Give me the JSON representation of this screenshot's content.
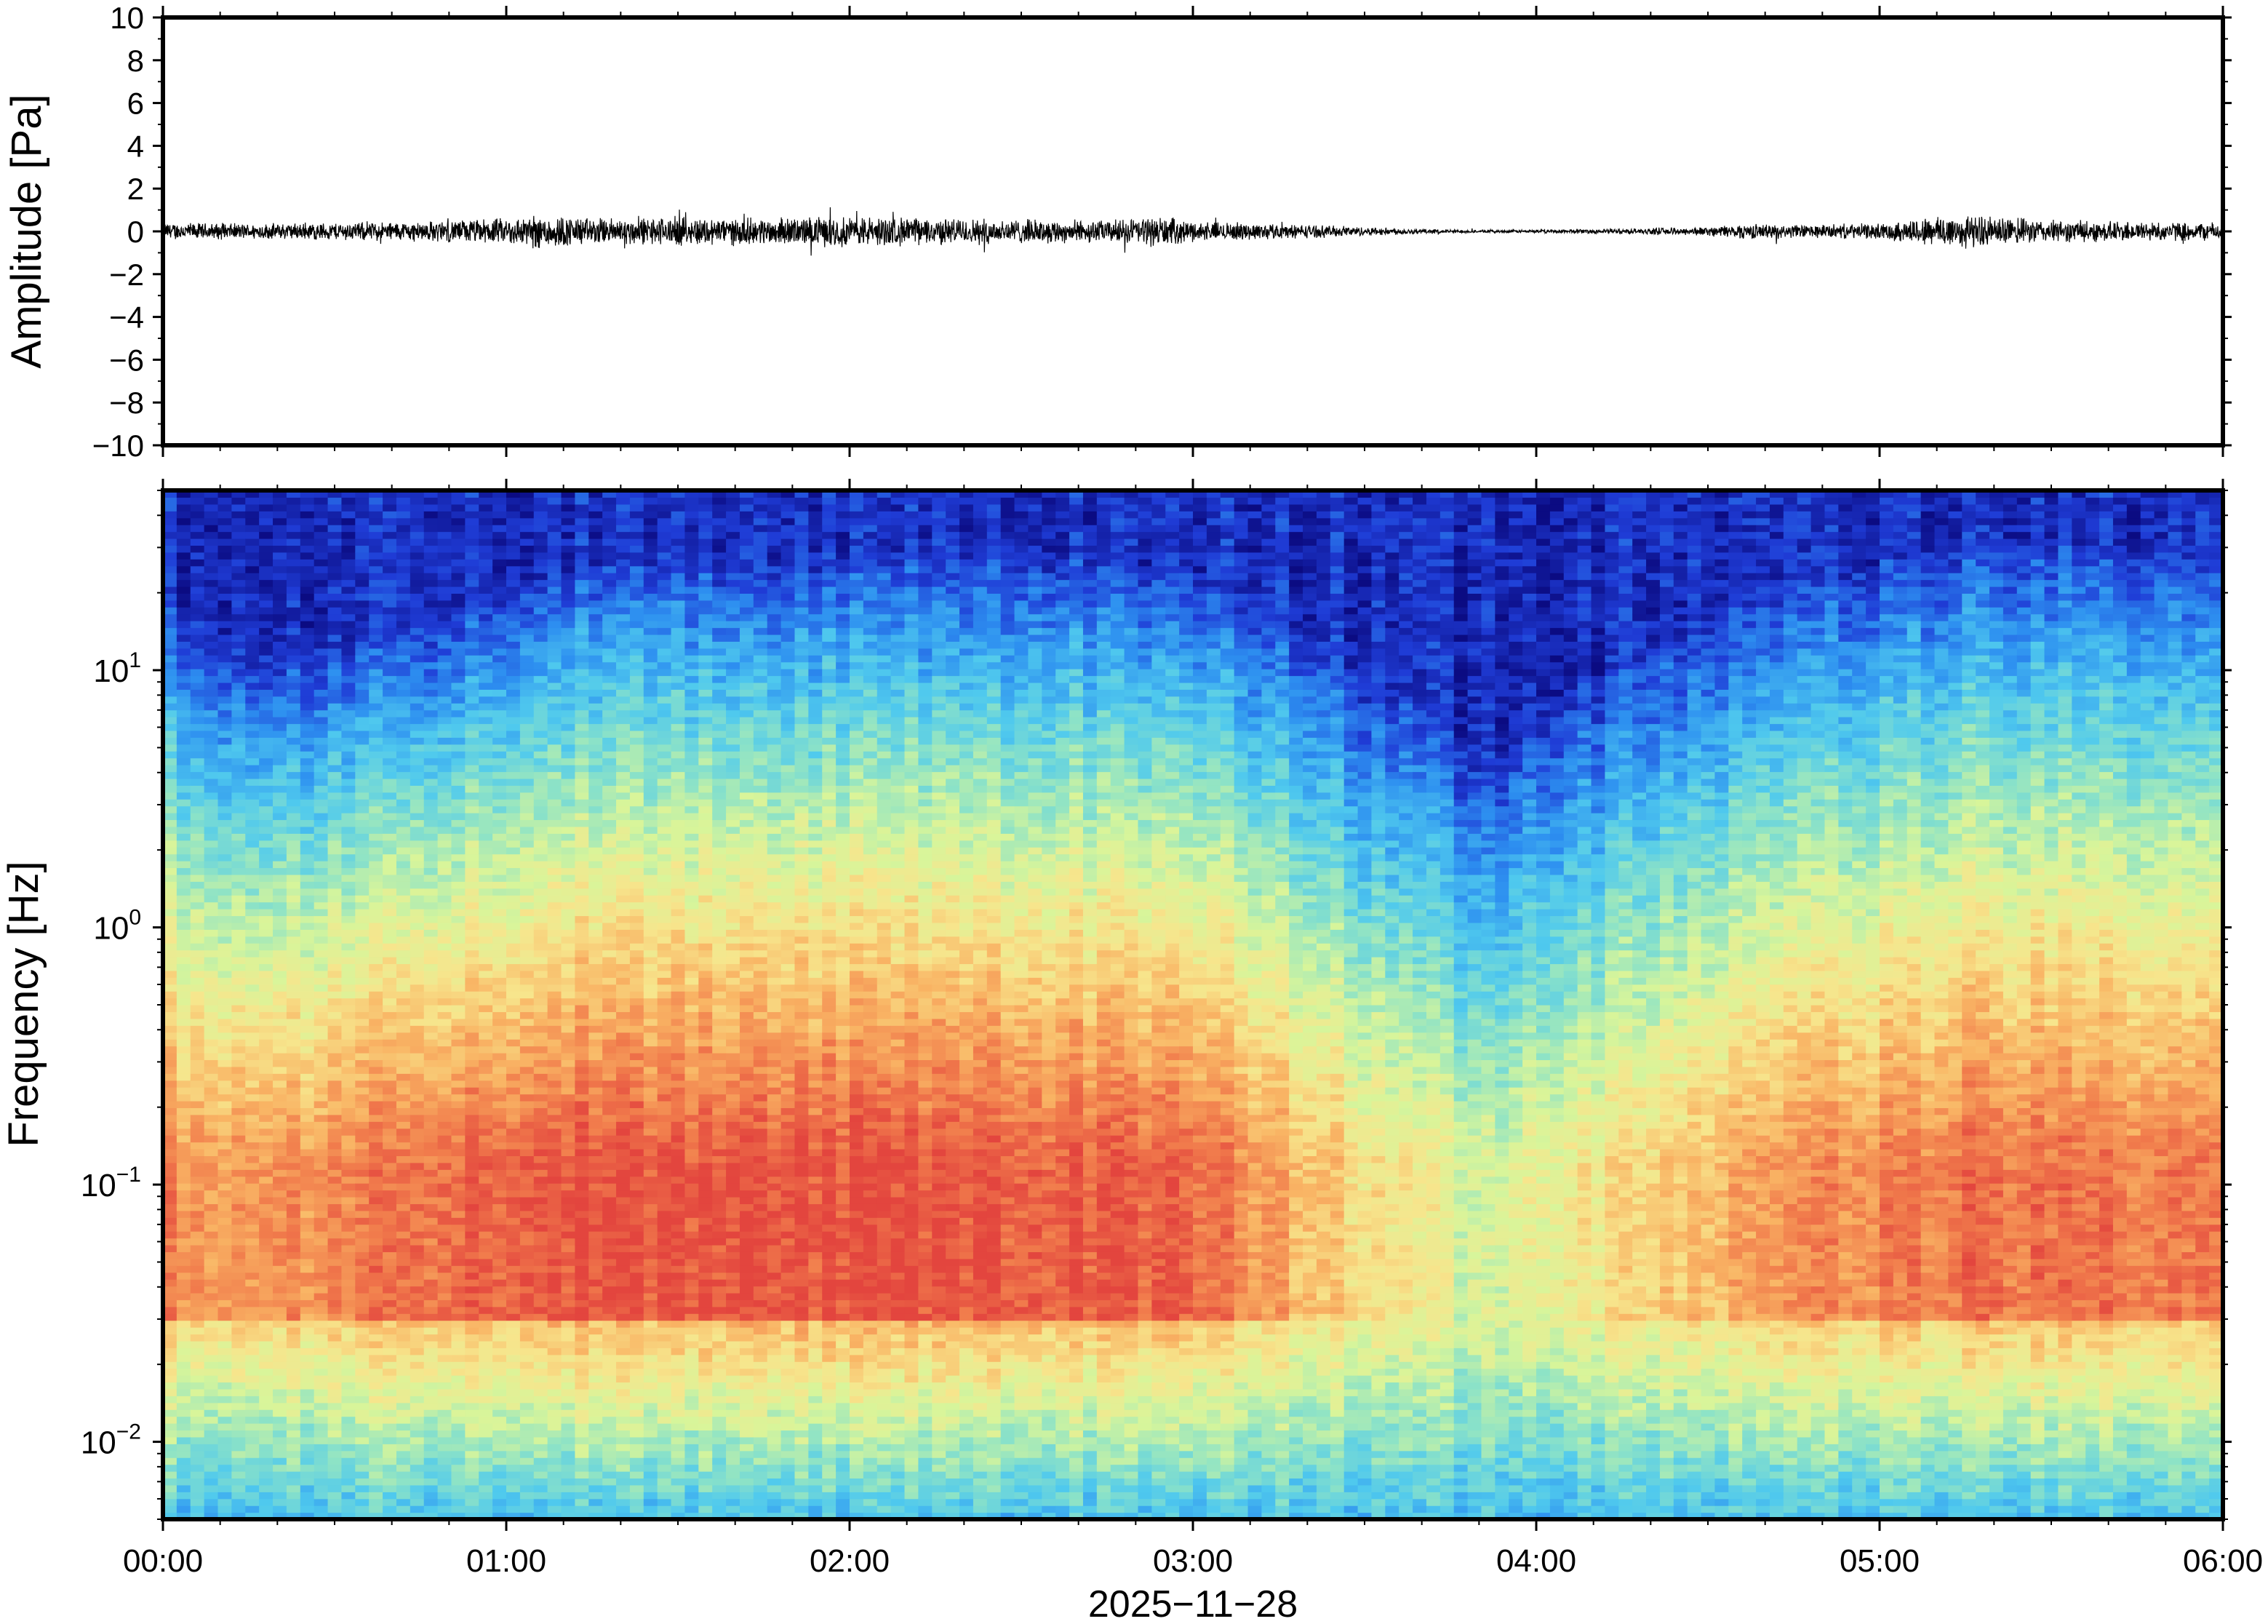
{
  "chart_data": [
    {
      "type": "line",
      "ylabel": "Amplitude [Pa]",
      "ylim": [
        -10,
        10
      ],
      "yticks": [
        -10,
        -8,
        -6,
        -4,
        -2,
        0,
        2,
        4,
        6,
        8,
        10
      ],
      "ytick_labels": [
        "−10",
        "−8",
        "−6",
        "−4",
        "−2",
        "0",
        "2",
        "4",
        "6",
        "8",
        "10"
      ],
      "xlim_hours": [
        0,
        6
      ],
      "envelope": {
        "t_hours": [
          0.0,
          0.25,
          0.5,
          0.75,
          1.0,
          1.1,
          1.25,
          1.5,
          1.75,
          2.0,
          2.25,
          2.5,
          2.75,
          2.9,
          3.0,
          3.25,
          3.5,
          3.75,
          3.9,
          4.0,
          4.25,
          4.5,
          4.6,
          4.75,
          5.0,
          5.2,
          5.3,
          5.5,
          5.75,
          6.0
        ],
        "amp_pa": [
          0.4,
          0.35,
          0.4,
          0.45,
          0.6,
          0.8,
          0.6,
          0.65,
          0.6,
          0.7,
          0.6,
          0.55,
          0.5,
          0.7,
          0.45,
          0.35,
          0.2,
          0.08,
          0.06,
          0.08,
          0.12,
          0.2,
          0.35,
          0.3,
          0.35,
          0.8,
          0.7,
          0.5,
          0.45,
          0.4
        ]
      }
    },
    {
      "type": "heatmap",
      "ylabel": "Frequency [Hz]",
      "yscale": "log",
      "ylim_hz": [
        0.005,
        50
      ],
      "ytick_labels": [
        {
          "base": "10",
          "exp": "−2",
          "value": 0.01
        },
        {
          "base": "10",
          "exp": "−1",
          "value": 0.1
        },
        {
          "base": "10",
          "exp": "0",
          "value": 1
        },
        {
          "base": "10",
          "exp": "1",
          "value": 10
        }
      ],
      "colormap": "jet-like, blue = low power, red = high power",
      "colors": [
        "#0b0b82",
        "#1f3cd6",
        "#2d8ff0",
        "#4fc9ee",
        "#8ee3c6",
        "#d8f59a",
        "#f7e58c",
        "#f9b464",
        "#f17c4c",
        "#e3453e"
      ],
      "time_hours": [
        0,
        0.25,
        0.5,
        0.75,
        1.0,
        1.25,
        1.5,
        1.75,
        2.0,
        2.25,
        2.5,
        2.75,
        3.0,
        3.25,
        3.5,
        3.75,
        3.85,
        4.0,
        4.25,
        4.5,
        4.75,
        5.0,
        5.25,
        5.5,
        5.75,
        6.0
      ],
      "upper_cutoff_hz": [
        20,
        12,
        13,
        16,
        22,
        28,
        30,
        27,
        30,
        29,
        30,
        28,
        25,
        18,
        10,
        7,
        4,
        8,
        11,
        16,
        24,
        28,
        33,
        33,
        31,
        28
      ],
      "peak_power_band_hz": [
        0.03,
        0.12
      ],
      "relative_activity": [
        0.75,
        0.7,
        0.75,
        0.85,
        0.95,
        1.0,
        1.0,
        1.0,
        1.0,
        1.0,
        0.95,
        0.95,
        0.9,
        0.6,
        0.3,
        0.1,
        0.0,
        0.2,
        0.3,
        0.5,
        0.7,
        0.75,
        0.85,
        0.85,
        0.8,
        0.8
      ]
    }
  ],
  "x_axis": {
    "tick_labels": [
      "00:00",
      "01:00",
      "02:00",
      "03:00",
      "04:00",
      "05:00",
      "06:00"
    ],
    "date_label": "2025−11−28"
  }
}
